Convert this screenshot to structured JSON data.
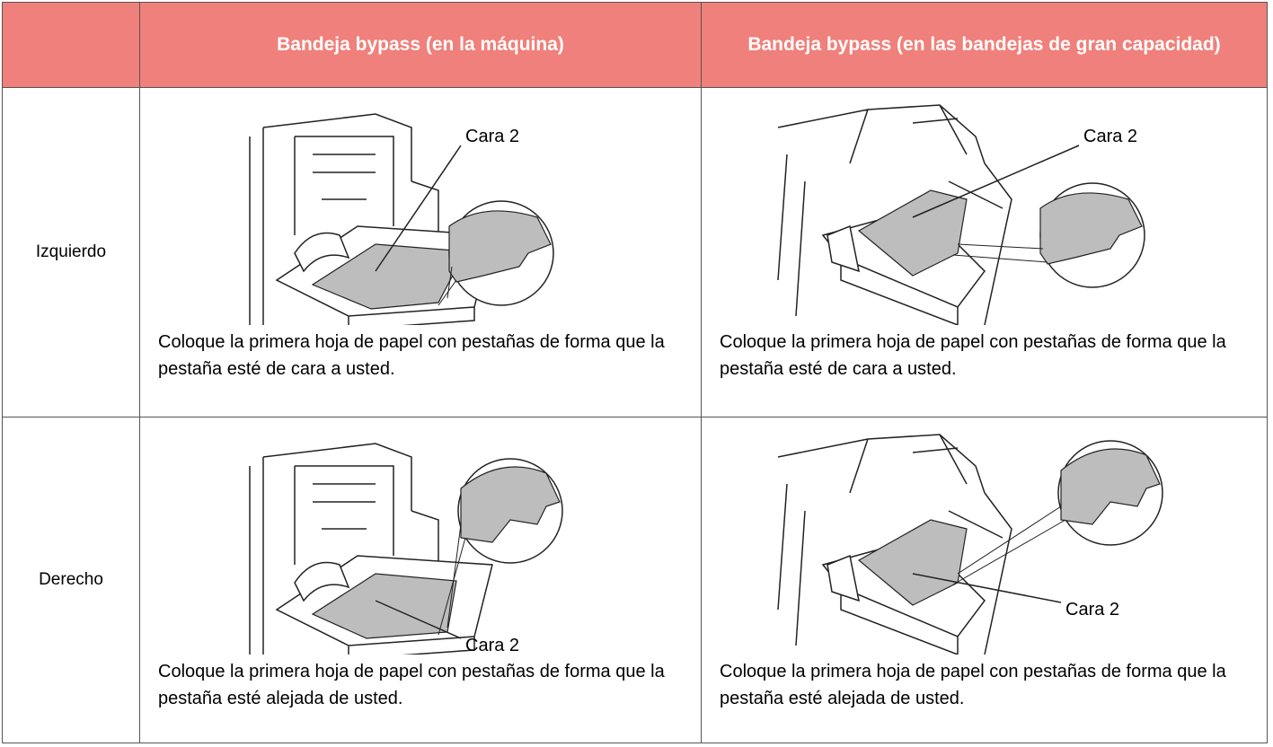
{
  "table": {
    "header": [
      "Bandeja bypass (en la máquina)",
      "Bandeja bypass (en las bandejas de gran capacidad)"
    ],
    "rows": [
      {
        "label": "Izquierdo",
        "cells": [
          {
            "callout": "Cara 2",
            "caption": "Coloque la primera hoja de papel con pestañas de forma que la pestaña esté de cara a usted."
          },
          {
            "callout": "Cara 2",
            "caption": "Coloque la primera hoja de papel con pestañas de forma que la pestaña esté de cara a usted."
          }
        ]
      },
      {
        "label": "Derecho",
        "cells": [
          {
            "callout": "Cara 2",
            "caption": "Coloque la primera hoja de papel con pestañas de forma que la pestaña esté alejada de usted."
          },
          {
            "callout": "Cara 2",
            "caption": "Coloque la primera hoja de papel con pestañas de forma que la pestaña esté alejada de usted."
          }
        ]
      }
    ]
  }
}
